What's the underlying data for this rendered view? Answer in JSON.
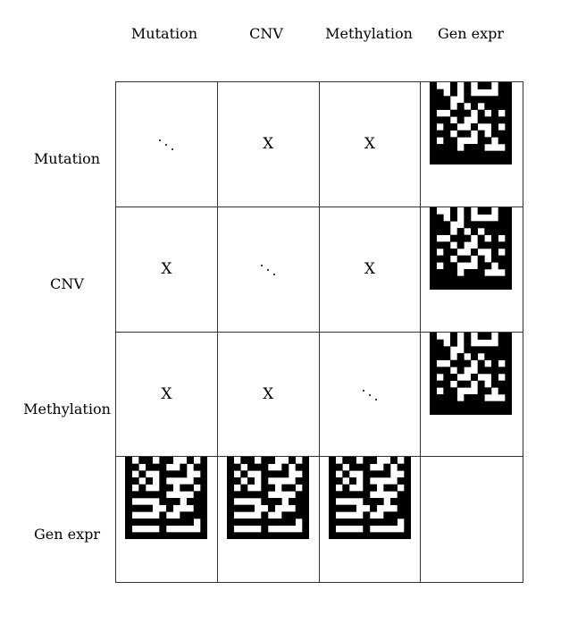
{
  "columns": [
    "Mutation",
    "CNV",
    "Methylation",
    "Gen expr"
  ],
  "rows": [
    "Mutation",
    "CNV",
    "Methylation",
    "Gen expr"
  ],
  "cells": [
    [
      "ddots",
      "X",
      "X",
      "matrix-a"
    ],
    [
      "X",
      "ddots",
      "X",
      "matrix-a"
    ],
    [
      "X",
      "X",
      "ddots",
      "matrix-a"
    ],
    [
      "matrix-b",
      "matrix-b",
      "matrix-b",
      ""
    ]
  ],
  "text": {
    "x_mark": "X"
  },
  "colors": {
    "ink": "#000000",
    "paper": "#ffffff",
    "border": "#333333"
  }
}
